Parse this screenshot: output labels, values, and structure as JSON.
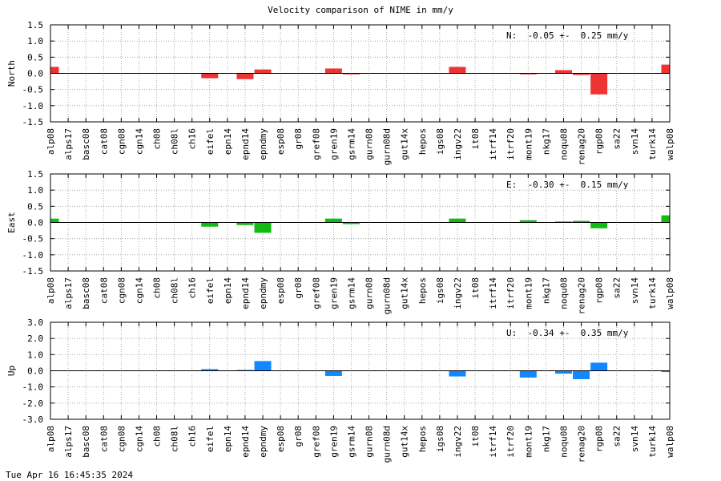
{
  "title": "Velocity comparison of NIME in mm/y",
  "timestamp": "Tue Apr 16 16:45:35 2024",
  "chart_data": [
    {
      "type": "bar",
      "ylabel": "North",
      "annotation": "N:  -0.05 +-  0.25 mm/y",
      "ylim": [
        -1.5,
        1.5
      ],
      "yticks": [
        -1.5,
        -1.0,
        -0.5,
        0.0,
        0.5,
        1.0,
        1.5
      ],
      "ytick_labels": [
        "-1.5",
        "-1.0",
        "-0.5",
        "0.0",
        "0.5",
        "1.0",
        "1.5"
      ],
      "color": "#ee3333",
      "categories": [
        "alp08",
        "alps17",
        "basc08",
        "cat08",
        "cgn08",
        "cgn14",
        "ch08",
        "ch08l",
        "ch16",
        "eifel",
        "epn14",
        "epnd14",
        "epndmy",
        "esp08",
        "gr08",
        "gref08",
        "gren19",
        "gsrm14",
        "gurn08",
        "gurn08d",
        "gut14x",
        "hepos",
        "igs08",
        "ingv22",
        "it08",
        "itrf14",
        "itrf20",
        "mont19",
        "nkg17",
        "noqu08",
        "renag20",
        "rgp08",
        "sa22",
        "svn14",
        "turk14",
        "walp08"
      ],
      "values": [
        0.2,
        0,
        0,
        0,
        0,
        0,
        0,
        0,
        0,
        -0.15,
        0,
        -0.18,
        0.12,
        0,
        0,
        0,
        0.15,
        -0.03,
        0,
        0,
        0,
        0,
        0,
        0.2,
        0,
        0,
        0,
        -0.03,
        0,
        0.1,
        -0.05,
        -0.65,
        0,
        0,
        0,
        0.27
      ],
      "grid": true
    },
    {
      "type": "bar",
      "ylabel": "East",
      "annotation": "E:  -0.30 +-  0.15 mm/y",
      "ylim": [
        -1.5,
        1.5
      ],
      "yticks": [
        -1.5,
        -1.0,
        -0.5,
        0.0,
        0.5,
        1.0,
        1.5
      ],
      "ytick_labels": [
        "-1.5",
        "-1.0",
        "-0.5",
        "0.0",
        "0.5",
        "1.0",
        "1.5"
      ],
      "color": "#11bb11",
      "categories": [
        "alp08",
        "alps17",
        "basc08",
        "cat08",
        "cgn08",
        "cgn14",
        "ch08",
        "ch08l",
        "ch16",
        "eifel",
        "epn14",
        "epnd14",
        "epndmy",
        "esp08",
        "gr08",
        "gref08",
        "gren19",
        "gsrm14",
        "gurn08",
        "gurn08d",
        "gut14x",
        "hepos",
        "igs08",
        "ingv22",
        "it08",
        "itrf14",
        "itrf20",
        "mont19",
        "nkg17",
        "noqu08",
        "renag20",
        "rgp08",
        "sa22",
        "svn14",
        "turk14",
        "walp08"
      ],
      "values": [
        0.12,
        0,
        0,
        0,
        0,
        0,
        0,
        0,
        0,
        -0.13,
        0,
        -0.08,
        -0.32,
        0,
        0,
        0,
        0.12,
        -0.05,
        0,
        0,
        0,
        0,
        0,
        0.12,
        0,
        0,
        0,
        0.07,
        0,
        0.03,
        0.05,
        -0.18,
        0,
        0,
        0,
        0.22
      ],
      "grid": true
    },
    {
      "type": "bar",
      "ylabel": "Up",
      "annotation": "U:  -0.34 +-  0.35 mm/y",
      "ylim": [
        -3.0,
        3.0
      ],
      "yticks": [
        -3.0,
        -2.0,
        -1.0,
        0.0,
        1.0,
        2.0,
        3.0
      ],
      "ytick_labels": [
        "-3.0",
        "-2.0",
        "-1.0",
        "0.0",
        "1.0",
        "2.0",
        "3.0"
      ],
      "color": "#1188ff",
      "categories": [
        "alp08",
        "alps17",
        "basc08",
        "cat08",
        "cgn08",
        "cgn14",
        "ch08",
        "ch08l",
        "ch16",
        "eifel",
        "epn14",
        "epnd14",
        "epndmy",
        "esp08",
        "gr08",
        "gref08",
        "gren19",
        "gsrm14",
        "gurn08",
        "gurn08d",
        "gut14x",
        "hepos",
        "igs08",
        "ingv22",
        "it08",
        "itrf14",
        "itrf20",
        "mont19",
        "nkg17",
        "noqu08",
        "renag20",
        "rgp08",
        "sa22",
        "svn14",
        "turk14",
        "walp08"
      ],
      "values": [
        0,
        0,
        0,
        0,
        0,
        0,
        0,
        0,
        0,
        0.1,
        0,
        0.05,
        0.6,
        0,
        0,
        0,
        -0.32,
        0,
        0,
        0,
        0,
        0,
        0,
        -0.35,
        0,
        0,
        0,
        -0.42,
        0,
        -0.18,
        -0.52,
        0.5,
        0,
        0,
        0,
        -0.08
      ],
      "grid": true
    }
  ]
}
